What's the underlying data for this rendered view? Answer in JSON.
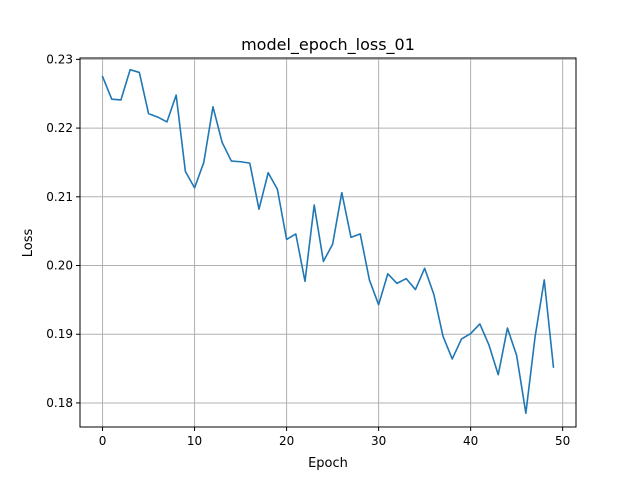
{
  "chart_data": {
    "type": "line",
    "title": "model_epoch_loss_01",
    "xlabel": "Epoch",
    "ylabel": "Loss",
    "xlim": [
      -2.45,
      51.45
    ],
    "ylim": [
      0.1765,
      0.2302
    ],
    "grid": true,
    "colors": {
      "line": "#1f77b4",
      "grid": "#b0b0b0",
      "frame": "#000000"
    },
    "x_ticks": [
      0,
      10,
      20,
      30,
      40,
      50
    ],
    "x_tick_labels": [
      "0",
      "10",
      "20",
      "30",
      "40",
      "50"
    ],
    "y_ticks": [
      0.18,
      0.19,
      0.2,
      0.21,
      0.22,
      0.23
    ],
    "y_tick_labels": [
      "0.18",
      "0.19",
      "0.20",
      "0.21",
      "0.22",
      "0.23"
    ],
    "x": [
      0,
      1,
      2,
      3,
      4,
      5,
      6,
      7,
      8,
      9,
      10,
      11,
      12,
      13,
      14,
      15,
      16,
      17,
      18,
      19,
      20,
      21,
      22,
      23,
      24,
      25,
      26,
      27,
      28,
      29,
      30,
      31,
      32,
      33,
      34,
      35,
      36,
      37,
      38,
      39,
      40,
      41,
      42,
      43,
      44,
      45,
      46,
      47,
      48,
      49
    ],
    "series": [
      {
        "values": [
          0.2275,
          0.2242,
          0.2241,
          0.2285,
          0.2281,
          0.2221,
          0.2216,
          0.2209,
          0.2248,
          0.2137,
          0.2113,
          0.215,
          0.2231,
          0.2179,
          0.2152,
          0.2151,
          0.2149,
          0.2082,
          0.2135,
          0.2111,
          0.2038,
          0.2046,
          0.1977,
          0.2088,
          0.2006,
          0.2031,
          0.2106,
          0.2041,
          0.2046,
          0.1979,
          0.1943,
          0.1988,
          0.1974,
          0.1981,
          0.1965,
          0.1996,
          0.1958,
          0.1897,
          0.1864,
          0.1893,
          0.1901,
          0.1915,
          0.1884,
          0.1841,
          0.1909,
          0.1869,
          0.1785,
          0.1896,
          0.1979,
          0.1852
        ]
      }
    ]
  }
}
